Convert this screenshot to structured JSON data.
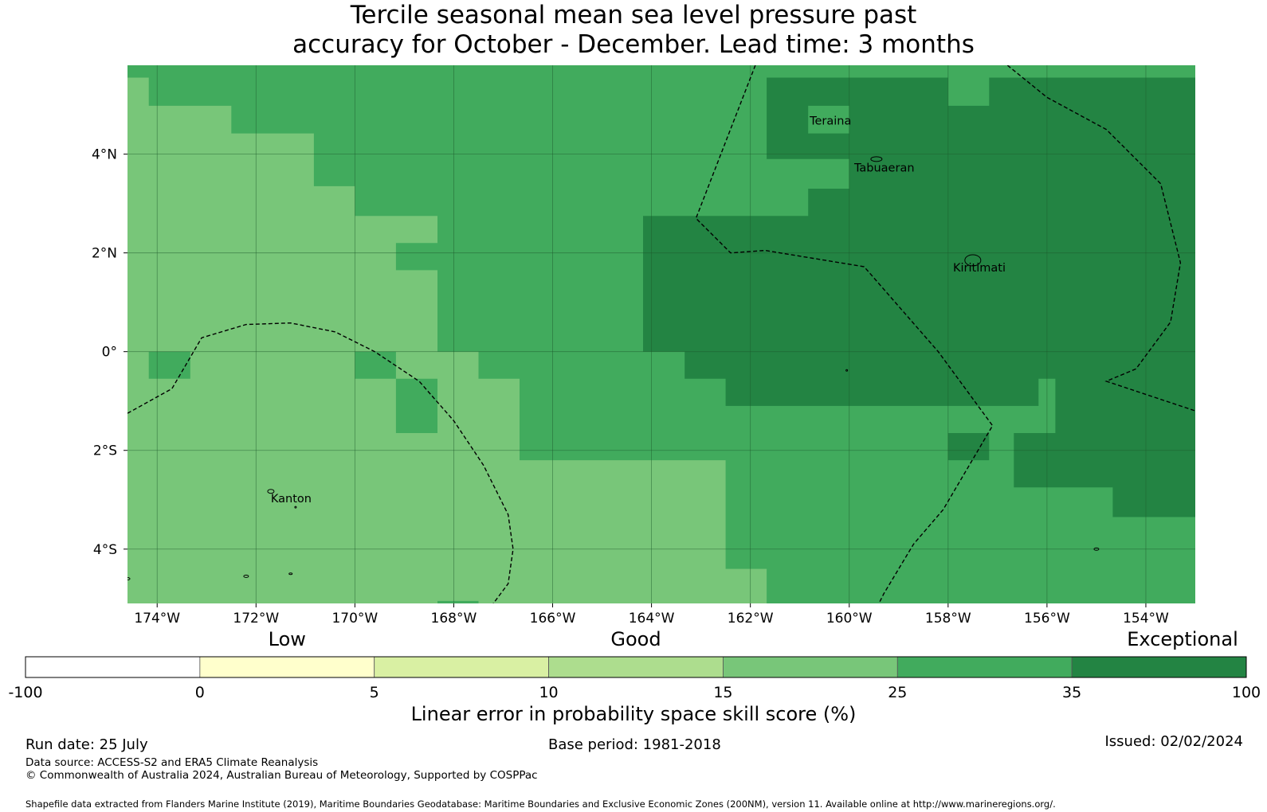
{
  "title": {
    "line1": "Tercile seasonal mean sea level pressure past",
    "line2": "accuracy for October - December. Lead time: 3 months"
  },
  "map": {
    "lat_range": [
      -5.1,
      5.8
    ],
    "lon_range": [
      -174.6,
      -153.0
    ],
    "lon_ticks": [
      {
        "value": -174,
        "label": "174°W"
      },
      {
        "value": -172,
        "label": "172°W"
      },
      {
        "value": -170,
        "label": "170°W"
      },
      {
        "value": -168,
        "label": "168°W"
      },
      {
        "value": -166,
        "label": "166°W"
      },
      {
        "value": -164,
        "label": "164°W"
      },
      {
        "value": -162,
        "label": "162°W"
      },
      {
        "value": -160,
        "label": "160°W"
      },
      {
        "value": -158,
        "label": "158°W"
      },
      {
        "value": -156,
        "label": "156°W"
      },
      {
        "value": -154,
        "label": "154°W"
      }
    ],
    "lat_ticks": [
      {
        "value": 4,
        "label": "4°N"
      },
      {
        "value": 2,
        "label": "2°N"
      },
      {
        "value": 0,
        "label": "0°"
      },
      {
        "value": -2,
        "label": "2°S"
      },
      {
        "value": -4,
        "label": "4°S"
      }
    ],
    "places": [
      {
        "name": "Teraina",
        "lon": -160.8,
        "lat": 4.6
      },
      {
        "name": "Tabuaeran",
        "lon": -159.9,
        "lat": 3.65
      },
      {
        "name": "Kiritimati",
        "lon": -157.9,
        "lat": 1.62
      },
      {
        "name": "Kanton",
        "lon": -171.7,
        "lat": -3.05
      }
    ],
    "skill_regions": [
      {
        "category": 25,
        "lonlat": [
          [
            -174.6,
            5.8
          ],
          [
            -153.0,
            5.8
          ],
          [
            -153.0,
            -5.1
          ],
          [
            -174.6,
            -5.1
          ]
        ]
      },
      {
        "category": 15,
        "lonlat": [
          [
            -174.6,
            5.55
          ],
          [
            -174.17,
            5.55
          ],
          [
            -174.17,
            4.98
          ],
          [
            -172.5,
            4.98
          ],
          [
            -172.5,
            4.42
          ],
          [
            -170.83,
            4.42
          ],
          [
            -170.83,
            3.35
          ],
          [
            -170.0,
            3.35
          ],
          [
            -170.0,
            2.75
          ],
          [
            -168.33,
            2.75
          ],
          [
            -168.33,
            2.2
          ],
          [
            -169.17,
            2.2
          ],
          [
            -169.17,
            1.65
          ],
          [
            -168.33,
            1.65
          ],
          [
            -168.33,
            0.0
          ],
          [
            -167.5,
            0.0
          ],
          [
            -167.5,
            -0.55
          ],
          [
            -166.67,
            -0.55
          ],
          [
            -166.67,
            -2.2
          ],
          [
            -162.5,
            -2.2
          ],
          [
            -162.5,
            -4.4
          ],
          [
            -161.67,
            -4.4
          ],
          [
            -161.67,
            -5.1
          ],
          [
            -167.5,
            -5.1
          ],
          [
            -167.5,
            -4.5
          ],
          [
            -166.67,
            -4.5
          ],
          [
            -166.67,
            -5.05
          ],
          [
            -168.33,
            -5.05
          ],
          [
            -168.33,
            -5.1
          ],
          [
            -174.6,
            -5.1
          ]
        ]
      },
      {
        "category": 25,
        "lonlat": [
          [
            -174.17,
            0.0
          ],
          [
            -173.33,
            0.0
          ],
          [
            -173.33,
            -0.55
          ],
          [
            -174.17,
            -0.55
          ]
        ]
      },
      {
        "category": 25,
        "lonlat": [
          [
            -170.0,
            0.0
          ],
          [
            -169.17,
            0.0
          ],
          [
            -169.17,
            -0.55
          ],
          [
            -170.0,
            -0.55
          ]
        ]
      },
      {
        "category": 25,
        "lonlat": [
          [
            -169.17,
            -0.55
          ],
          [
            -168.33,
            -0.55
          ],
          [
            -168.33,
            -1.65
          ],
          [
            -169.17,
            -1.65
          ]
        ]
      },
      {
        "category": 35,
        "lonlat": [
          [
            -161.67,
            5.55
          ],
          [
            -158.0,
            5.55
          ],
          [
            -158.0,
            4.98
          ],
          [
            -157.17,
            4.98
          ],
          [
            -157.17,
            5.55
          ],
          [
            -153.0,
            5.55
          ],
          [
            -153.0,
            -3.35
          ],
          [
            -154.67,
            -3.35
          ],
          [
            -154.67,
            -2.75
          ],
          [
            -156.67,
            -2.75
          ],
          [
            -156.67,
            -1.65
          ],
          [
            -155.83,
            -1.65
          ],
          [
            -155.83,
            -0.55
          ],
          [
            -156.17,
            -0.55
          ],
          [
            -156.17,
            -1.1
          ],
          [
            -162.5,
            -1.1
          ],
          [
            -162.5,
            -0.55
          ],
          [
            -163.33,
            -0.55
          ],
          [
            -163.33,
            0.0
          ],
          [
            -164.17,
            0.0
          ],
          [
            -164.17,
            2.75
          ],
          [
            -160.83,
            2.75
          ],
          [
            -160.83,
            3.3
          ],
          [
            -160.0,
            3.3
          ],
          [
            -160.0,
            3.9
          ],
          [
            -161.67,
            3.9
          ]
        ]
      },
      {
        "category": 25,
        "lonlat": [
          [
            -160.83,
            4.98
          ],
          [
            -160.0,
            4.98
          ],
          [
            -160.0,
            4.42
          ],
          [
            -160.83,
            4.42
          ]
        ]
      },
      {
        "category": 35,
        "lonlat": [
          [
            -158.0,
            -1.65
          ],
          [
            -157.17,
            -1.65
          ],
          [
            -157.17,
            -2.2
          ],
          [
            -158.0,
            -2.2
          ]
        ]
      }
    ],
    "boundaries": [
      [
        [
          -174.6,
          -1.25
        ],
        [
          -173.7,
          -0.75
        ],
        [
          -173.1,
          0.28
        ],
        [
          -172.2,
          0.55
        ],
        [
          -171.3,
          0.58
        ],
        [
          -170.4,
          0.4
        ],
        [
          -169.6,
          0.0
        ],
        [
          -168.7,
          -0.6
        ],
        [
          -168.0,
          -1.4
        ],
        [
          -167.4,
          -2.3
        ],
        [
          -166.9,
          -3.3
        ],
        [
          -166.8,
          -4.0
        ],
        [
          -166.9,
          -4.7
        ],
        [
          -167.2,
          -5.1
        ]
      ],
      [
        [
          -161.9,
          5.8
        ],
        [
          -163.1,
          2.7
        ],
        [
          -162.4,
          2.0
        ],
        [
          -161.7,
          2.05
        ],
        [
          -159.7,
          1.72
        ],
        [
          -158.2,
          0.0
        ],
        [
          -157.1,
          -1.5
        ],
        [
          -158.1,
          -3.2
        ],
        [
          -158.7,
          -3.9
        ],
        [
          -159.3,
          -4.9
        ],
        [
          -159.4,
          -5.1
        ]
      ],
      [
        [
          -156.8,
          5.8
        ],
        [
          -156.0,
          5.15
        ],
        [
          -154.8,
          4.5
        ],
        [
          -153.7,
          3.4
        ],
        [
          -153.3,
          1.8
        ],
        [
          -153.5,
          0.6
        ],
        [
          -154.2,
          -0.35
        ],
        [
          -154.8,
          -0.6
        ],
        [
          -153.0,
          -1.2
        ]
      ]
    ],
    "islands": [
      {
        "lon": -159.45,
        "lat": 3.9,
        "rx": 7,
        "ry": 3
      },
      {
        "lon": -157.5,
        "lat": 1.85,
        "rx": 10,
        "ry": 7
      },
      {
        "lon": -171.7,
        "lat": -2.83,
        "rx": 4,
        "ry": 2.5
      },
      {
        "lon": -155.0,
        "lat": -4.0,
        "rx": 3,
        "ry": 1.5
      },
      {
        "lon": -171.2,
        "lat": -3.15,
        "rx": 1,
        "ry": 1
      },
      {
        "lon": -174.6,
        "lat": -4.6,
        "rx": 3,
        "ry": 1.5
      },
      {
        "lon": -172.2,
        "lat": -4.55,
        "rx": 3,
        "ry": 1.5
      },
      {
        "lon": -171.3,
        "lat": -4.5,
        "rx": 2,
        "ry": 1
      },
      {
        "lon": -160.05,
        "lat": -0.38,
        "rx": 1,
        "ry": 1
      }
    ]
  },
  "colorbar": {
    "category_labels": [
      {
        "text": "Low",
        "at": 0
      },
      {
        "text": "Good",
        "at": 10
      },
      {
        "text": "Exceptional",
        "at": 100
      }
    ],
    "bins": [
      {
        "from": "-100",
        "to": "0",
        "color": "#ffffff"
      },
      {
        "from": "0",
        "to": "5",
        "color": "#ffffcc"
      },
      {
        "from": "5",
        "to": "10",
        "color": "#d9f0a3"
      },
      {
        "from": "10",
        "to": "15",
        "color": "#addd8e"
      },
      {
        "from": "15",
        "to": "25",
        "color": "#78c679"
      },
      {
        "from": "25",
        "to": "35",
        "color": "#41ab5d"
      },
      {
        "from": "35",
        "to": "100",
        "color": "#238443"
      }
    ],
    "tick_labels": [
      "-100",
      "0",
      "5",
      "10",
      "15",
      "25",
      "35",
      "100"
    ],
    "label": "Linear error in probability space skill score (%)"
  },
  "footer": {
    "run_date": "Run date: 25 July",
    "base_period": "Base period: 1981-2018",
    "issued": "Issued: 02/02/2024",
    "data_source": "Data source: ACCESS-S2 and ERA5 Climate Reanalysis",
    "copyright": "© Commonwealth of Australia 2024, Australian Bureau of Meteorology, Supported by COSPPac",
    "shapefile_note": "Shapefile data extracted from Flanders Marine Institute (2019), Maritime Boundaries Geodatabase: Maritime Boundaries and Exclusive Economic Zones (200NM), version 11. Available online at http://www.marineregions.org/."
  }
}
